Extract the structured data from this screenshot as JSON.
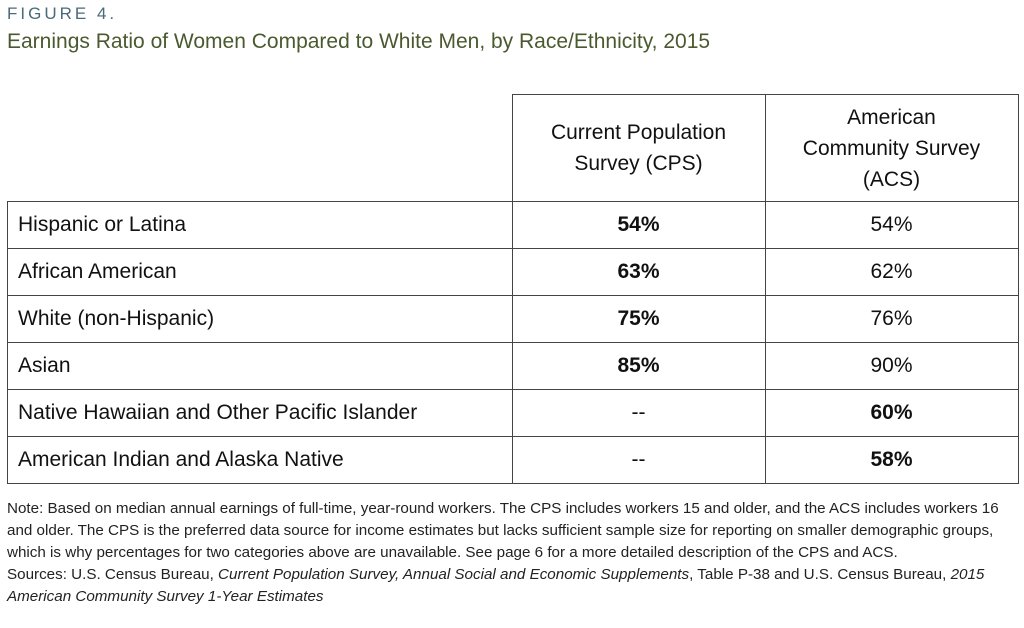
{
  "figure": {
    "label": "FIGURE 4.",
    "title": "Earnings Ratio of Women Compared to White Men, by Race/Ethnicity, 2015"
  },
  "table": {
    "columns": [
      {
        "line1": "Current Population",
        "line2": "Survey (CPS)"
      },
      {
        "line1": "American",
        "line2": "Community Survey",
        "line3": "(ACS)"
      }
    ],
    "rows": [
      {
        "label": "Hispanic or Latina",
        "cps": "54%",
        "acs": "54%",
        "bold": "cps"
      },
      {
        "label": "African American",
        "cps": "63%",
        "acs": "62%",
        "bold": "cps"
      },
      {
        "label": "White (non-Hispanic)",
        "cps": "75%",
        "acs": "76%",
        "bold": "cps"
      },
      {
        "label": "Asian",
        "cps": "85%",
        "acs": "90%",
        "bold": "cps"
      },
      {
        "label": "Native Hawaiian and Other Pacific Islander",
        "cps": "--",
        "acs": "60%",
        "bold": "acs"
      },
      {
        "label": "American Indian and Alaska Native",
        "cps": "--",
        "acs": "58%",
        "bold": "acs"
      }
    ]
  },
  "notes": {
    "note": "Note: Based on median annual earnings of full-time, year-round workers. The CPS includes workers 15 and older, and the ACS includes workers 16 and older. The CPS is the preferred data source for income estimates but lacks sufficient sample size for reporting on smaller demographic groups, which is why percentages for two categories above are unavailable. See page 6 for a more detailed description of the CPS and ACS.",
    "sources_prefix": "Sources: U.S. Census Bureau, ",
    "sources_italic1": "Current Population Survey, Annual Social and Economic Supplements",
    "sources_mid": ", Table P-38 and U.S. Census Bureau, ",
    "sources_italic2": "2015 American Community Survey 1-Year Estimates"
  }
}
